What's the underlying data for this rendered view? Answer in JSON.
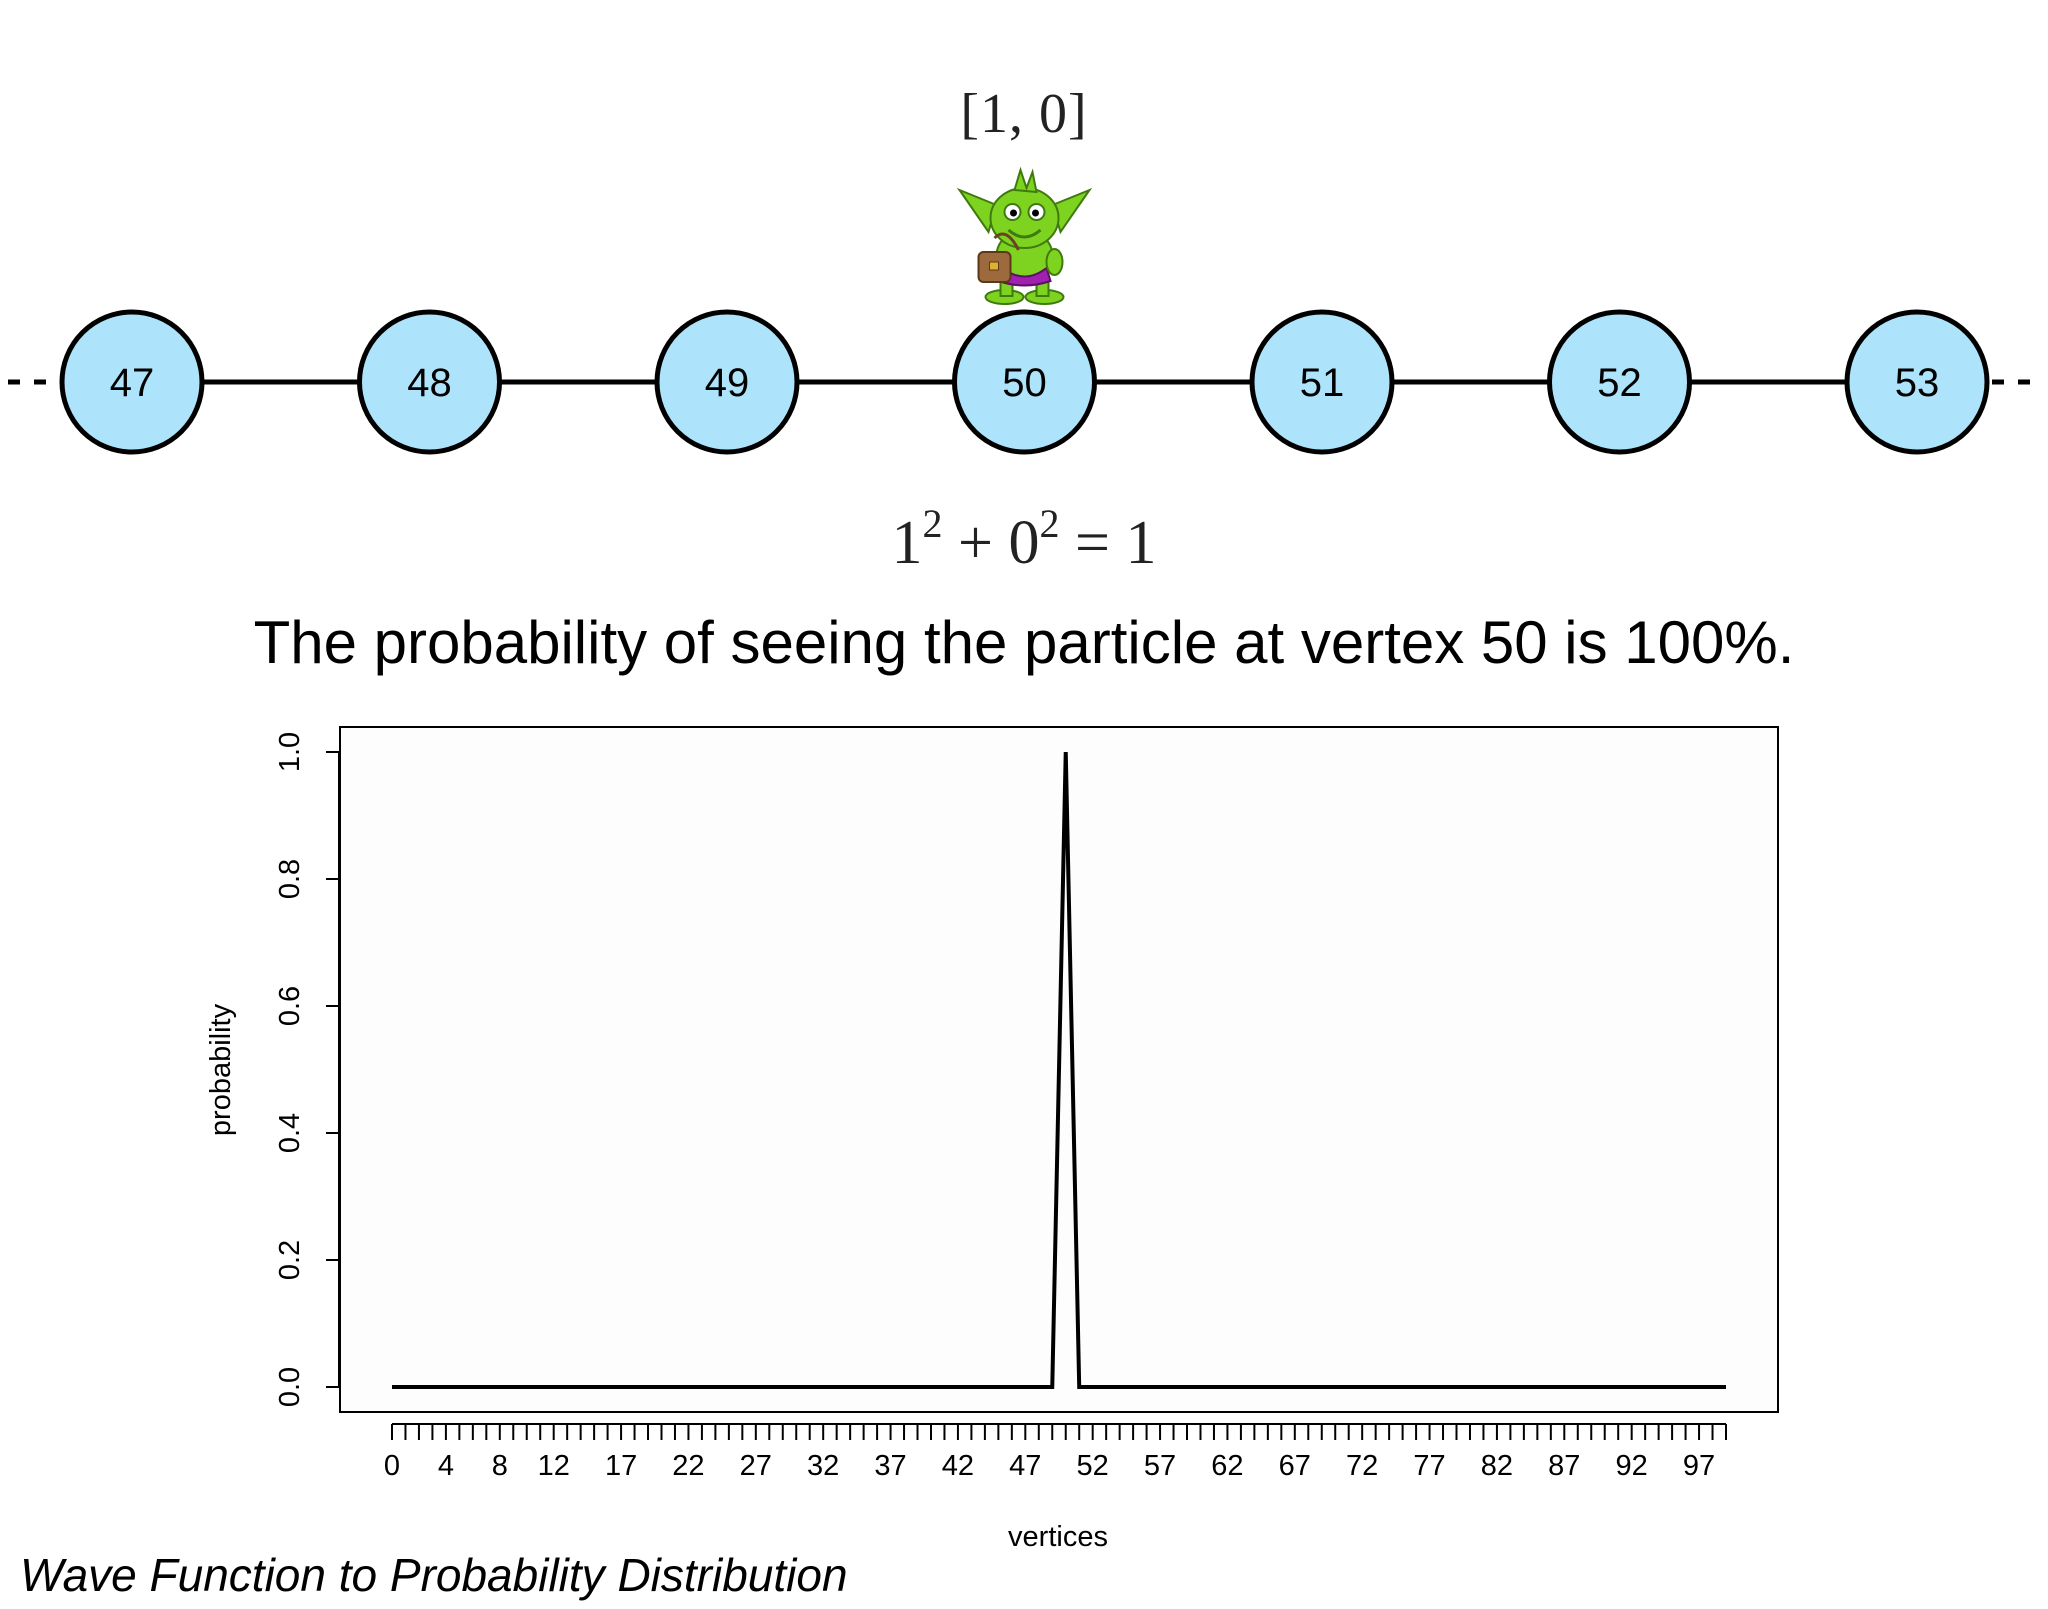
{
  "graph": {
    "nodes": [
      "47",
      "48",
      "49",
      "50",
      "51",
      "52",
      "53"
    ],
    "node_fill": "#ade3fb",
    "active_node": "50",
    "amplitude_label": "[1, 0]",
    "character_icon": "goblin-icon"
  },
  "equation": {
    "base1": "1",
    "exp1": "2",
    "op": " + ",
    "base2": "0",
    "exp2": "2",
    "result": " = 1"
  },
  "caption": "The probability of seeing the particle at vertex 50 is 100%.",
  "chart_data": {
    "type": "line",
    "xlabel": "vertices",
    "ylabel": "probability",
    "xlim": [
      0,
      99
    ],
    "ylim": [
      0,
      1
    ],
    "x_tick_labels": [
      "0",
      "4",
      "8",
      "12",
      "17",
      "22",
      "27",
      "32",
      "37",
      "42",
      "47",
      "52",
      "57",
      "62",
      "67",
      "72",
      "77",
      "82",
      "87",
      "92",
      "97"
    ],
    "y_tick_labels": [
      "0.0",
      "0.2",
      "0.4",
      "0.6",
      "0.8",
      "1.0"
    ],
    "y_ticks": [
      0,
      0.2,
      0.4,
      0.6,
      0.8,
      1.0
    ],
    "series": [
      {
        "x": [
          0,
          49,
          50,
          51,
          99
        ],
        "y": [
          0,
          0,
          1,
          0,
          0
        ]
      }
    ],
    "grid": false
  },
  "footer": "Wave Function to Probability Distribution"
}
